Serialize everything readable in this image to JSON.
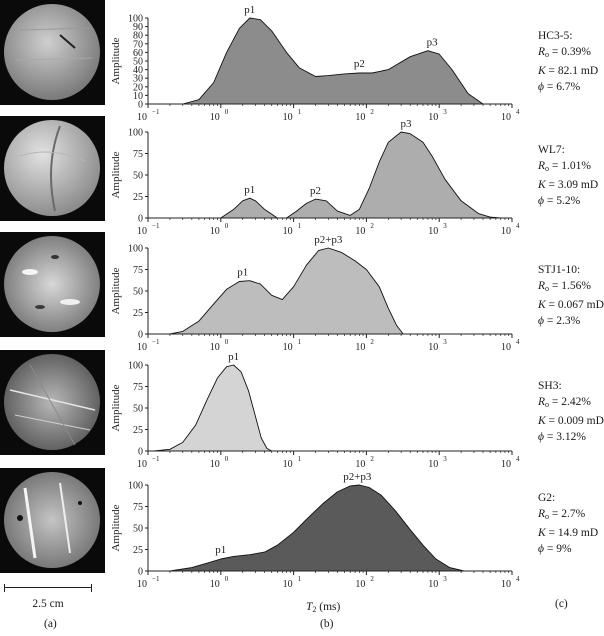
{
  "panel_labels": {
    "a": "(a)",
    "b": "(b)",
    "c": "(c)"
  },
  "scale_bar": {
    "label": "2.5 cm"
  },
  "x_axis_label": "T",
  "x_axis_label_sub": "2",
  "x_axis_label_unit": " (ms)",
  "chart_data": [
    {
      "type": "area",
      "sample": "HC3-5:",
      "ylabel": "Amplitude",
      "xscale": "log",
      "xlim": [
        0.1,
        10000
      ],
      "ylim": [
        0,
        100
      ],
      "yticks": [
        "0",
        "10",
        "20",
        "30",
        "40",
        "50",
        "60",
        "70",
        "80",
        "90",
        "100"
      ],
      "xticks": [
        "10",
        "10",
        "10",
        "10",
        "10",
        "10"
      ],
      "xtick_exps": [
        "−1",
        "0",
        "1",
        "2",
        "3",
        "4"
      ],
      "fill": "#8c8c8c",
      "peaks": [
        {
          "label": "p1",
          "x": 2.5,
          "y": 100
        },
        {
          "label": "p2",
          "x": 80,
          "y": 37
        },
        {
          "label": "p3",
          "x": 800,
          "y": 62
        }
      ],
      "x": [
        0.3,
        0.5,
        0.8,
        1.2,
        1.8,
        2.5,
        3.5,
        5,
        8,
        12,
        20,
        30,
        50,
        80,
        120,
        200,
        400,
        700,
        1000,
        1500,
        2500,
        4000
      ],
      "y": [
        0,
        5,
        25,
        60,
        88,
        100,
        98,
        85,
        60,
        42,
        32,
        33,
        35,
        36,
        36,
        40,
        55,
        62,
        58,
        40,
        12,
        0
      ],
      "Ro": "0.39%",
      "K": "82.1 mD",
      "phi": "6.7%"
    },
    {
      "type": "area",
      "sample": "WL7:",
      "ylabel": "Amplitude",
      "xscale": "log",
      "xlim": [
        0.1,
        10000
      ],
      "ylim": [
        0,
        100
      ],
      "yticks": [
        "0",
        "25",
        "50",
        "75",
        "100"
      ],
      "xticks": [
        "10",
        "10",
        "10",
        "10",
        "10",
        "10"
      ],
      "xtick_exps": [
        "−1",
        "0",
        "1",
        "2",
        "3",
        "4"
      ],
      "fill": "#adadad",
      "peaks": [
        {
          "label": "p1",
          "x": 2.5,
          "y": 23
        },
        {
          "label": "p2",
          "x": 20,
          "y": 22
        },
        {
          "label": "p3",
          "x": 350,
          "y": 100
        }
      ],
      "x": [
        1.0,
        1.5,
        2.0,
        2.5,
        3.0,
        4.0,
        6.0,
        8.0,
        11,
        15,
        20,
        28,
        40,
        60,
        80,
        110,
        150,
        200,
        300,
        400,
        600,
        800,
        1200,
        2000,
        3500,
        5000,
        7000
      ],
      "y": [
        0,
        10,
        20,
        23,
        20,
        10,
        0,
        0,
        8,
        17,
        22,
        20,
        8,
        3,
        10,
        35,
        65,
        88,
        100,
        98,
        88,
        72,
        45,
        20,
        5,
        1,
        0
      ],
      "Ro": "1.01%",
      "K": "3.09 mD",
      "phi": "5.2%"
    },
    {
      "type": "area",
      "sample": "STJ1-10:",
      "ylabel": "Amplitude",
      "xscale": "log",
      "xlim": [
        0.1,
        10000
      ],
      "ylim": [
        0,
        100
      ],
      "yticks": [
        "0",
        "25",
        "50",
        "75",
        "100"
      ],
      "xticks": [
        "10",
        "10",
        "10",
        "10",
        "10",
        "10"
      ],
      "xtick_exps": [
        "−1",
        "0",
        "1",
        "2",
        "3",
        "4"
      ],
      "fill": "#bdbdbd",
      "peaks": [
        {
          "label": "p1",
          "x": 2.0,
          "y": 62
        },
        {
          "label": "p2+p3",
          "x": 30,
          "y": 100
        }
      ],
      "x": [
        0.2,
        0.3,
        0.5,
        0.8,
        1.2,
        1.8,
        2.5,
        3.5,
        5,
        7,
        10,
        15,
        22,
        30,
        45,
        70,
        100,
        150,
        200,
        260,
        320
      ],
      "y": [
        0,
        3,
        15,
        35,
        52,
        61,
        62,
        58,
        45,
        40,
        55,
        80,
        97,
        100,
        95,
        85,
        75,
        55,
        30,
        10,
        0
      ],
      "Ro": "1.56%",
      "K": "0.067 mD",
      "phi": "2.3%"
    },
    {
      "type": "area",
      "sample": "SH3:",
      "ylabel": "Amplitude",
      "xscale": "log",
      "xlim": [
        0.1,
        10000
      ],
      "ylim": [
        0,
        100
      ],
      "yticks": [
        "0",
        "25",
        "50",
        "75",
        "100"
      ],
      "xticks": [
        "10",
        "10",
        "10",
        "10",
        "10",
        "10"
      ],
      "xtick_exps": [
        "−1",
        "0",
        "1",
        "2",
        "3",
        "4"
      ],
      "fill": "#d4d4d4",
      "peaks": [
        {
          "label": "p1",
          "x": 1.5,
          "y": 100
        }
      ],
      "x": [
        0.12,
        0.2,
        0.3,
        0.45,
        0.65,
        0.9,
        1.2,
        1.5,
        1.9,
        2.4,
        3.0,
        3.6,
        4.3,
        5.0
      ],
      "y": [
        0,
        2,
        10,
        30,
        60,
        85,
        98,
        100,
        92,
        70,
        40,
        15,
        3,
        0
      ],
      "Ro": "2.42%",
      "K": "0.009 mD",
      "phi": "3.12%"
    },
    {
      "type": "area",
      "sample": "G2:",
      "ylabel": "Amplitude",
      "xscale": "log",
      "xlim": [
        0.1,
        10000
      ],
      "ylim": [
        0,
        100
      ],
      "yticks": [
        "0",
        "25",
        "50",
        "75",
        "100"
      ],
      "xticks": [
        "10",
        "10",
        "10",
        "10",
        "10",
        "10"
      ],
      "xtick_exps": [
        "−1",
        "0",
        "1",
        "2",
        "3",
        "4"
      ],
      "fill": "#5a5a5a",
      "peaks": [
        {
          "label": "p1",
          "x": 1.0,
          "y": 15
        },
        {
          "label": "p2+p3",
          "x": 75,
          "y": 100
        }
      ],
      "x": [
        0.2,
        0.4,
        0.7,
        1.0,
        1.5,
        2.5,
        4,
        6,
        10,
        15,
        25,
        40,
        60,
        80,
        110,
        160,
        250,
        400,
        600,
        900,
        1400,
        2200
      ],
      "y": [
        0,
        4,
        10,
        14,
        17,
        19,
        22,
        30,
        45,
        60,
        78,
        92,
        99,
        100,
        97,
        88,
        70,
        48,
        30,
        14,
        4,
        0
      ],
      "Ro": "2.7%",
      "K": "14.9 mD",
      "phi": "9%"
    }
  ]
}
